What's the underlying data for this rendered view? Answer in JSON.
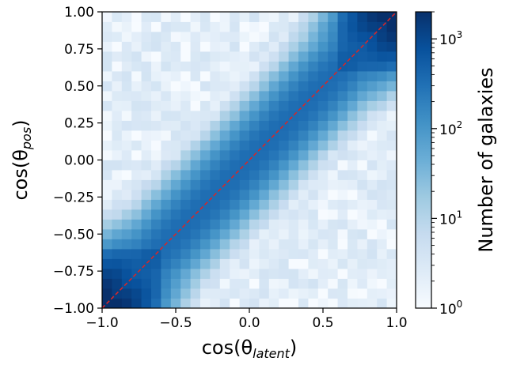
{
  "chart_data": {
    "type": "heatmap",
    "x": {
      "label_base": "cos(θ",
      "label_sub": "latent",
      "label_close": ")",
      "range": [
        -1.0,
        1.0
      ],
      "ticks": [
        -1.0,
        -0.5,
        0.0,
        0.5,
        1.0
      ],
      "tick_labels": [
        "−1.0",
        "−0.5",
        "0.0",
        "0.5",
        "1.0"
      ]
    },
    "y": {
      "label_base": "cos(θ",
      "label_sub": "pos",
      "label_close": ")",
      "range": [
        -1.0,
        1.0
      ],
      "ticks": [
        -1.0,
        -0.75,
        -0.5,
        -0.25,
        0.0,
        0.25,
        0.5,
        0.75,
        1.0
      ],
      "tick_labels": [
        "−1.00",
        "−0.75",
        "−0.50",
        "−0.25",
        "0.00",
        "0.25",
        "0.50",
        "0.75",
        "1.00"
      ]
    },
    "bins": 30,
    "colorbar": {
      "label": "Number of galaxies",
      "scale": "log",
      "range": [
        1,
        2000
      ],
      "ticks": [
        1,
        10,
        100,
        1000
      ],
      "tick_base": "10",
      "tick_exponents": [
        "0",
        "1",
        "2",
        "3"
      ],
      "colormap": "Blues"
    },
    "reference_line": {
      "x": [
        -1.0,
        1.0
      ],
      "y": [
        -1.0,
        1.0
      ],
      "color": "#d62728",
      "style": "dashed"
    },
    "distribution": {
      "diagonal_count": 350,
      "endpoint_count": 1800,
      "band_width": 0.22,
      "background_count": 2
    },
    "colors": {
      "low": "#f7fbff",
      "high": "#08306b",
      "line": "#d62728"
    }
  }
}
